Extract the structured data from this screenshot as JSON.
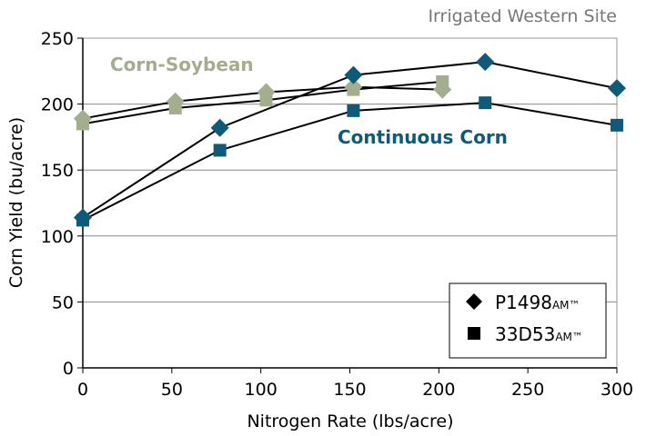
{
  "chart_data": {
    "type": "line",
    "title": "Irrigated Western Site",
    "xlabel": "Nitrogen Rate (lbs/acre)",
    "ylabel": "Corn Yield (bu/acre)",
    "xlim": [
      0,
      300
    ],
    "ylim": [
      0,
      250
    ],
    "xticks": [
      0,
      50,
      100,
      150,
      200,
      250,
      300
    ],
    "yticks": [
      0,
      50,
      100,
      150,
      200,
      250
    ],
    "grid": "horizontal",
    "annotations": [
      {
        "text": "Corn-Soybean",
        "color": "#a3ae8e"
      },
      {
        "text": "Continuous Corn",
        "color": "#0f5a78"
      }
    ],
    "legend": {
      "placement": "bottom-right",
      "entries": [
        {
          "name": "P1498",
          "suffix": "AM™",
          "marker": "diamond"
        },
        {
          "name": "33D53",
          "suffix": "AM™",
          "marker": "square"
        }
      ]
    },
    "series": [
      {
        "name": "P1498 Corn-Soybean",
        "marker": "diamond",
        "color": "#a3ae8e",
        "x": [
          0,
          52,
          103,
          152,
          202
        ],
        "y": [
          189,
          202,
          209,
          213,
          211
        ]
      },
      {
        "name": "33D53 Corn-Soybean",
        "marker": "square",
        "color": "#a3ae8e",
        "x": [
          0,
          52,
          103,
          152,
          202
        ],
        "y": [
          185,
          197,
          203,
          211,
          217
        ]
      },
      {
        "name": "P1498 Continuous Corn",
        "marker": "diamond",
        "color": "#0f5a78",
        "x": [
          0,
          77,
          152,
          226,
          300
        ],
        "y": [
          114,
          182,
          222,
          232,
          212
        ]
      },
      {
        "name": "33D53 Continuous Corn",
        "marker": "square",
        "color": "#0f5a78",
        "x": [
          0,
          77,
          152,
          226,
          300
        ],
        "y": [
          112,
          165,
          195,
          201,
          184
        ]
      }
    ]
  }
}
